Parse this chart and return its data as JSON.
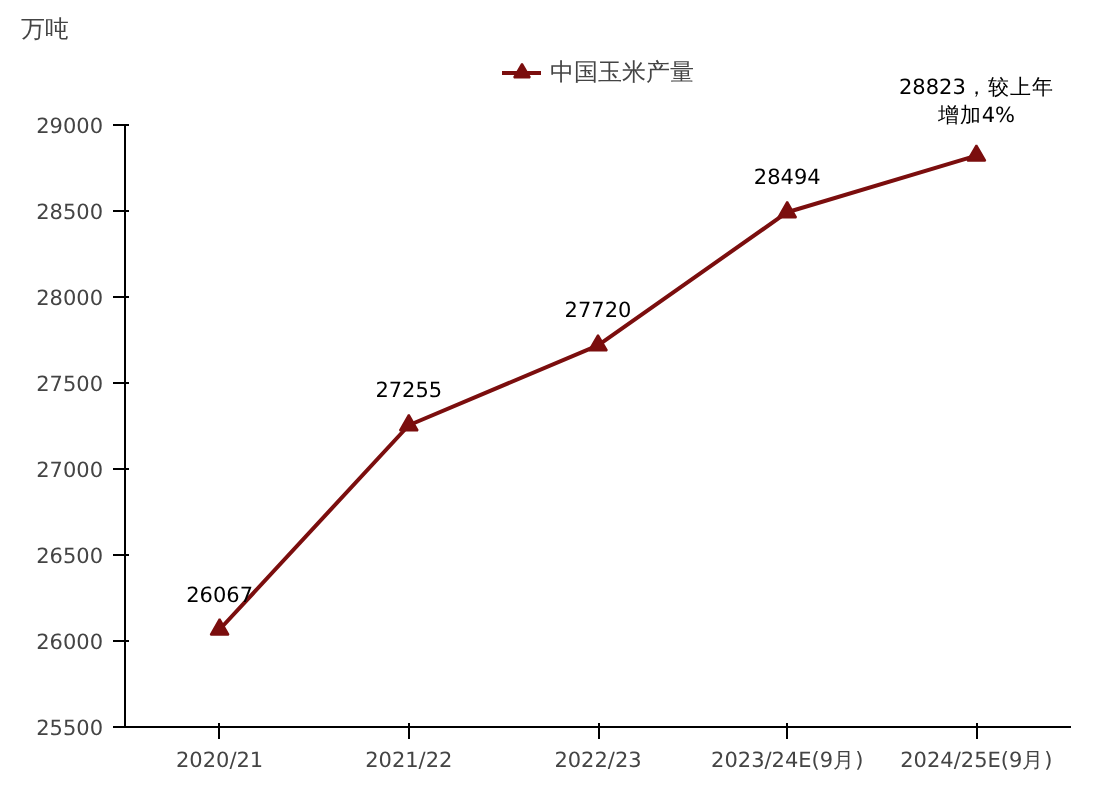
{
  "chart_data": {
    "type": "line",
    "ylabel": "万吨",
    "categories": [
      "2020/21",
      "2021/22",
      "2022/23",
      "2023/24E(9月)",
      "2024/25E(9月)"
    ],
    "series": [
      {
        "name": "中国玉米产量",
        "color": "#7b0e0e",
        "values": [
          26067,
          27255,
          27720,
          28494,
          28823
        ]
      }
    ],
    "value_labels": [
      "26067",
      "27255",
      "27720",
      "28494",
      "28823，较上年增加4%"
    ],
    "ylim": [
      25500,
      29000
    ],
    "yticks": [
      25500,
      26000,
      26500,
      27000,
      27500,
      28000,
      28500,
      29000
    ],
    "grid": false,
    "legend": "top",
    "marker": "triangle",
    "line_style": "solid"
  }
}
